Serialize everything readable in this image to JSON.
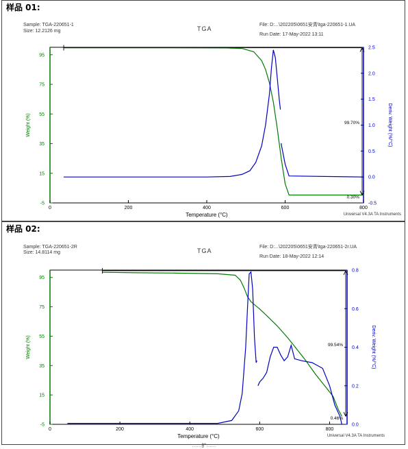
{
  "chart_data": [
    {
      "type": "line",
      "panel_title": "样品 01:",
      "title": "TGA",
      "sample_line": "Sample: TGA-220651-1",
      "size_line": "Size:  12.2126 mg",
      "file_line": "File: D:...\\202205\\0651安青\\tga-220651-1.UA",
      "run_date_line": "Run Date: 17-May-2022 13:11",
      "instrument_line": "Universal V4.3A TA Instruments",
      "xlabel": "Temperature (°C)",
      "ylabel": "Weight (%)",
      "y2label": "Deriv. Weight (%/°C)",
      "xlim": [
        0,
        800
      ],
      "ylim": [
        -5,
        100
      ],
      "y2lim": [
        -0.5,
        2.5
      ],
      "xticks": [
        "0",
        "200",
        "400",
        "600",
        "800"
      ],
      "yticks": [
        "-5",
        "15",
        "35",
        "55",
        "75",
        "95"
      ],
      "y2ticks": [
        "-0.5",
        "0.0",
        "0.5",
        "1.0",
        "1.5",
        "2.0",
        "2.5"
      ],
      "annotations": [
        "99.70%",
        "0.30%"
      ],
      "weight_color": "#007a00",
      "deriv_color": "#0000c0",
      "series": [
        {
          "name": "Weight",
          "axis": "left",
          "x": [
            35,
            300,
            450,
            490,
            520,
            540,
            550,
            560,
            570,
            580,
            590,
            600,
            610,
            800
          ],
          "y": [
            99.7,
            99.7,
            99.6,
            99.2,
            97,
            91,
            85,
            76,
            63,
            45,
            25,
            8,
            0.3,
            0.3
          ]
        },
        {
          "name": "Deriv. Weight",
          "axis": "right",
          "segment_break_after_x": 588,
          "x": [
            35,
            400,
            460,
            490,
            510,
            525,
            540,
            550,
            560,
            565,
            570,
            575,
            580,
            585,
            588,
            590,
            591,
            600,
            610,
            800
          ],
          "y": [
            0,
            0,
            0.01,
            0.05,
            0.12,
            0.28,
            0.6,
            1.0,
            1.6,
            2.1,
            2.45,
            2.3,
            1.9,
            1.5,
            1.3,
            0.65,
            0.6,
            0.25,
            0.02,
            0
          ]
        }
      ],
      "range_line_y": 99.7
    },
    {
      "type": "line",
      "panel_title": "样品 02:",
      "title": "TGA",
      "sample_line": "Sample: TGA-220651-2R",
      "size_line": "Size:  14.8114 mg",
      "file_line": "File: D:...\\202205\\0651安青\\tga-220651-2r.UA",
      "run_date_line": "Run Date: 18-May-2022 12:14",
      "instrument_line": "Universal V4.3A TA Instruments",
      "xlabel": "Temperature (°C)",
      "ylabel": "Weight (%)",
      "y2label": "Deriv. Weight (%/°C)",
      "xlim": [
        0,
        850
      ],
      "ylim": [
        -5,
        100
      ],
      "y2lim": [
        0,
        0.8
      ],
      "xticks": [
        "0",
        "200",
        "400",
        "600",
        "800"
      ],
      "yticks": [
        "-5",
        "15",
        "35",
        "55",
        "75",
        "95"
      ],
      "y2ticks": [
        "0.0",
        "0.2",
        "0.4",
        "0.6",
        "0.8"
      ],
      "annotations": [
        "99.54%",
        "0.46%"
      ],
      "weight_color": "#007a00",
      "deriv_color": "#0000c0",
      "series": [
        {
          "name": "Weight",
          "axis": "left",
          "x": [
            150,
            250,
            350,
            480,
            530,
            545,
            555,
            565,
            575,
            585,
            600,
            620,
            650,
            680,
            700,
            730,
            760,
            790,
            810,
            825,
            835
          ],
          "y": [
            98.5,
            98.2,
            98,
            97.5,
            96.5,
            93,
            88,
            82,
            78.5,
            76.5,
            73.5,
            69,
            62,
            54,
            48,
            39,
            29,
            20,
            14,
            5,
            0.5
          ]
        },
        {
          "name": "Deriv. Weight",
          "axis": "right",
          "segment_break_after_x": 592,
          "x": [
            50,
            480,
            520,
            540,
            550,
            560,
            565,
            570,
            575,
            580,
            585,
            590,
            592,
            595,
            600,
            610,
            620,
            630,
            640,
            650,
            660,
            670,
            680,
            690,
            700,
            720,
            750,
            780,
            800,
            815,
            830,
            835
          ],
          "y": [
            0.005,
            0.005,
            0.02,
            0.07,
            0.16,
            0.4,
            0.6,
            0.78,
            0.79,
            0.7,
            0.45,
            0.32,
            0.33,
            0.2,
            0.22,
            0.24,
            0.27,
            0.35,
            0.4,
            0.4,
            0.36,
            0.33,
            0.35,
            0.41,
            0.34,
            0.33,
            0.32,
            0.29,
            0.2,
            0.1,
            0.04,
            0.0
          ]
        }
      ],
      "range_line_y": 99.54
    }
  ],
  "footer_text": "……扩……"
}
